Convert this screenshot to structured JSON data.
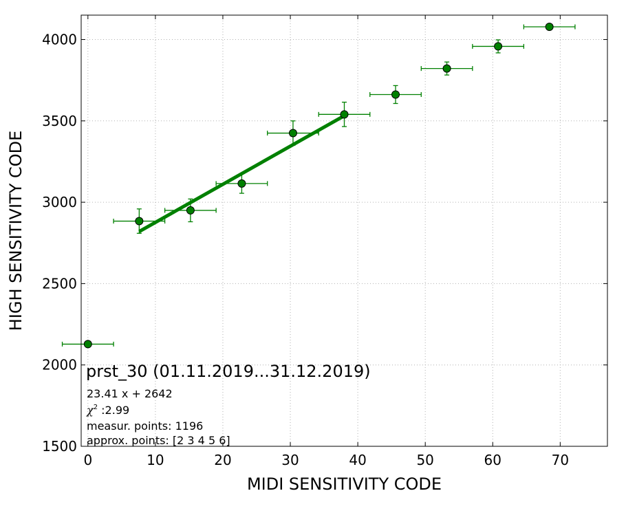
{
  "chart_data": {
    "type": "scatter",
    "xlabel": "MIDI SENSITIVITY CODE",
    "ylabel": "HIGH SENSITIVITY CODE",
    "xlim": [
      -1,
      77
    ],
    "ylim": [
      1500,
      4150
    ],
    "x_ticks": [
      0,
      10,
      20,
      30,
      40,
      50,
      60,
      70
    ],
    "y_ticks": [
      1500,
      2000,
      2500,
      3000,
      3500,
      4000
    ],
    "grid": true,
    "colors": {
      "series": "#008000",
      "fit": "#008000",
      "grid": "#b0b0b0"
    },
    "points": [
      {
        "x": 0.0,
        "y": 2128,
        "xerr": 3.8,
        "yerr": 0
      },
      {
        "x": 7.6,
        "y": 2884,
        "xerr": 3.8,
        "yerr": 75
      },
      {
        "x": 15.2,
        "y": 2950,
        "xerr": 3.8,
        "yerr": 70
      },
      {
        "x": 22.8,
        "y": 3115,
        "xerr": 3.8,
        "yerr": 60
      },
      {
        "x": 30.4,
        "y": 3425,
        "xerr": 3.8,
        "yerr": 75
      },
      {
        "x": 38.0,
        "y": 3540,
        "xerr": 3.8,
        "yerr": 75
      },
      {
        "x": 45.6,
        "y": 3662,
        "xerr": 3.8,
        "yerr": 55
      },
      {
        "x": 53.2,
        "y": 3822,
        "xerr": 3.8,
        "yerr": 40
      },
      {
        "x": 60.8,
        "y": 3958,
        "xerr": 3.8,
        "yerr": 40
      },
      {
        "x": 68.4,
        "y": 4078,
        "xerr": 3.8,
        "yerr": 0
      }
    ],
    "fit_line": {
      "slope": 23.41,
      "intercept": 2642,
      "x_start": 7.6,
      "x_end": 38.0
    },
    "annotations": {
      "title": "prst_30 (01.11.2019...31.12.2019)",
      "equation": "23.41 x + 2642",
      "chi_symbol": "χ",
      "chi_exp": "2",
      "chi_value": " :2.99",
      "measur_points": "measur. points: 1196",
      "approx_points": "approx. points: [2 3 4 5 6]"
    }
  }
}
